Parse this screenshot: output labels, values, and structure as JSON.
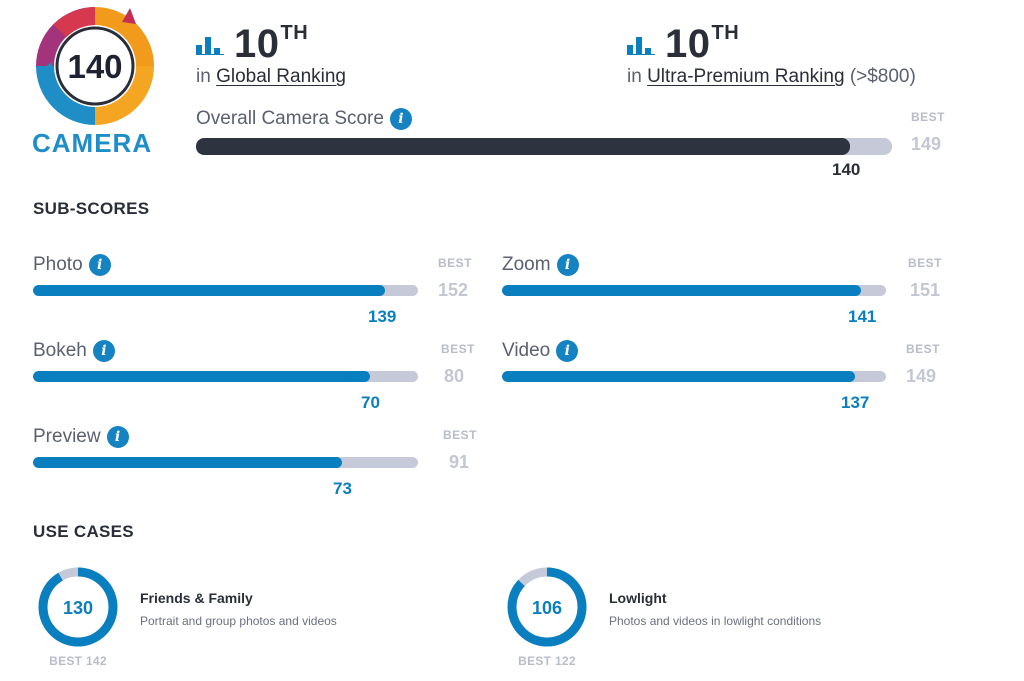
{
  "badge": {
    "score": "140",
    "label": "CAMERA"
  },
  "global": {
    "rank": "10",
    "suffix": "TH",
    "prefix": "in",
    "link": "Global Ranking"
  },
  "ultra": {
    "rank": "10",
    "suffix": "TH",
    "prefix": "in",
    "link": "Ultra-Premium Ranking",
    "extra": "(>$800)"
  },
  "overall": {
    "label": "Overall Camera Score",
    "best_label": "BEST",
    "best": "149",
    "score": "140",
    "fraction": 0.9396
  },
  "subscores": {
    "title": "SUB-SCORES",
    "items": [
      {
        "label": "Photo",
        "best_label": "BEST",
        "best": "152",
        "score": "139",
        "fraction": 0.9145
      },
      {
        "label": "Zoom",
        "best_label": "BEST",
        "best": "151",
        "score": "141",
        "fraction": 0.9338
      },
      {
        "label": "Bokeh",
        "best_label": "BEST",
        "best": "80",
        "score": "70",
        "fraction": 0.875
      },
      {
        "label": "Video",
        "best_label": "BEST",
        "best": "149",
        "score": "137",
        "fraction": 0.9195
      },
      {
        "label": "Preview",
        "best_label": "BEST",
        "best": "91",
        "score": "73",
        "fraction": 0.8022
      }
    ]
  },
  "usecases": {
    "title": "USE CASES",
    "items": [
      {
        "score": "130",
        "best": "BEST 142",
        "title": "Friends & Family",
        "desc": "Portrait and group photos and videos",
        "fraction": 0.9155
      },
      {
        "score": "106",
        "best": "BEST 122",
        "title": "Lowlight",
        "desc": "Photos and videos in lowlight conditions",
        "fraction": 0.8689
      }
    ]
  },
  "colors": {
    "accent": "#0a7fbf",
    "dark": "#2e3340",
    "track": "#c6c9d8",
    "info": "#1583c2"
  },
  "icons": {
    "rank": "bar-chart-icon",
    "info": "info-icon"
  }
}
